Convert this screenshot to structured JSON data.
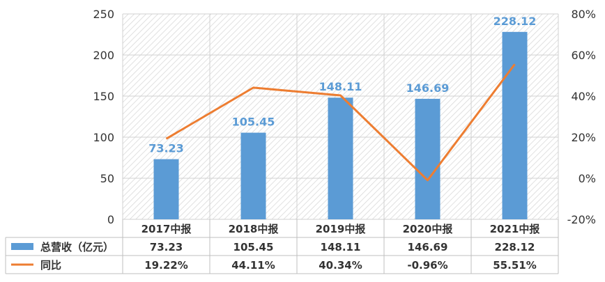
{
  "chart_data": {
    "type": "bar",
    "categories": [
      "2017中报",
      "2018中报",
      "2019中报",
      "2020中报",
      "2021中报"
    ],
    "series": [
      {
        "name": "总营收（亿元）",
        "kind": "bar",
        "axis": "left",
        "color": "#5b9bd5",
        "values": [
          73.23,
          105.45,
          148.11,
          146.69,
          228.12
        ],
        "labels": [
          "73.23",
          "105.45",
          "148.11",
          "146.69",
          "228.12"
        ]
      },
      {
        "name": "同比",
        "kind": "line",
        "axis": "right",
        "color": "#ed7d31",
        "values": [
          19.22,
          44.11,
          40.34,
          -0.96,
          55.51
        ],
        "labels": [
          "19.22%",
          "44.11%",
          "40.34%",
          "-0.96%",
          "55.51%"
        ]
      }
    ],
    "y_left": {
      "ylim": [
        0,
        250
      ],
      "ticks": [
        "0",
        "50",
        "100",
        "150",
        "200",
        "250"
      ]
    },
    "y_right": {
      "ylim": [
        -20,
        80
      ],
      "ticks": [
        "-20%",
        "0%",
        "20%",
        "40%",
        "60%",
        "80%"
      ]
    },
    "grid": true,
    "legend": "data-table"
  }
}
